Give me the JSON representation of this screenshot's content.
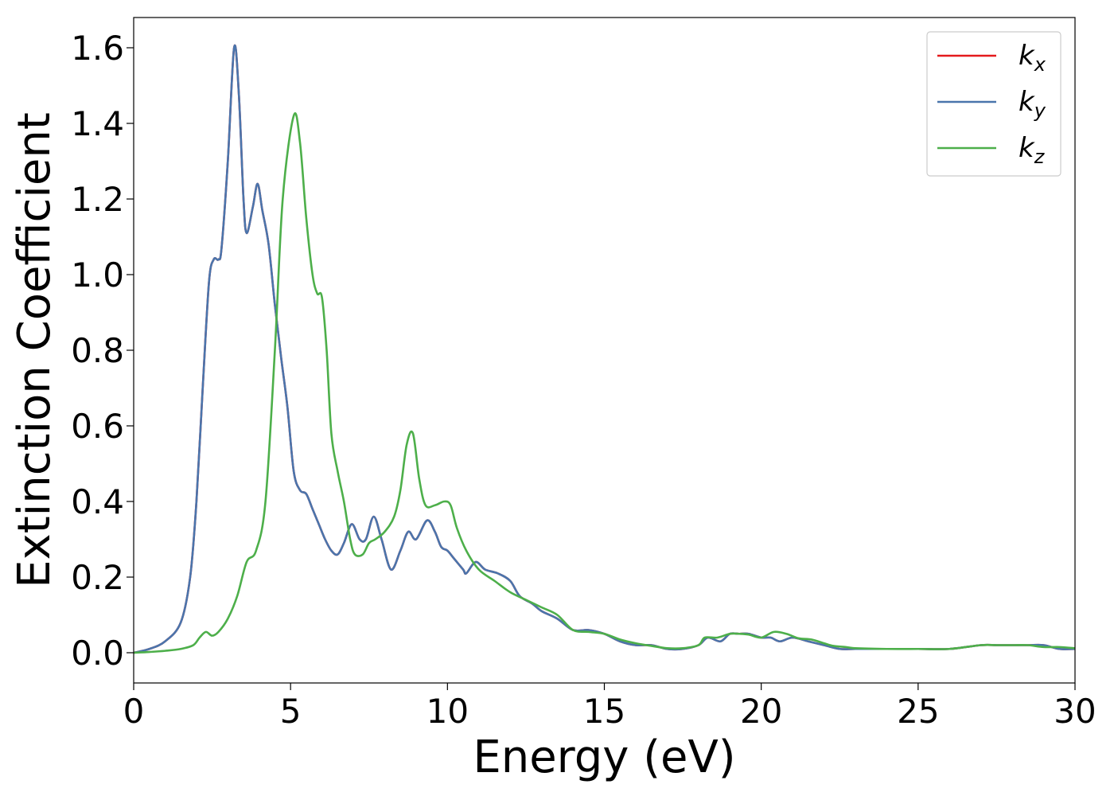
{
  "chart_data": {
    "type": "line",
    "title": "",
    "xlabel": "Energy (eV)",
    "ylabel": "Extinction Coefficient",
    "xlim": [
      0,
      30
    ],
    "ylim": [
      -0.08,
      1.68
    ],
    "xticks": [
      0,
      5,
      10,
      15,
      20,
      25,
      30
    ],
    "yticks": [
      0.0,
      0.2,
      0.4,
      0.6,
      0.8,
      1.0,
      1.2,
      1.4,
      1.6
    ],
    "xtick_labels": [
      "0",
      "5",
      "10",
      "15",
      "20",
      "25",
      "30"
    ],
    "ytick_labels": [
      "0.0",
      "0.2",
      "0.4",
      "0.6",
      "0.8",
      "1.0",
      "1.2",
      "1.4",
      "1.6"
    ],
    "grid": false,
    "legend_position": "top-right",
    "series": [
      {
        "name": "k_x",
        "legend_base": "k",
        "legend_sub": "x",
        "color": "#e41a1c",
        "x": [
          0,
          0.5,
          1.0,
          1.5,
          1.8,
          2.0,
          2.2,
          2.4,
          2.55,
          2.7,
          2.8,
          3.0,
          3.2,
          3.35,
          3.5,
          3.6,
          3.8,
          3.95,
          4.1,
          4.3,
          4.5,
          4.7,
          4.9,
          5.1,
          5.3,
          5.5,
          5.7,
          5.9,
          6.1,
          6.3,
          6.5,
          6.7,
          6.95,
          7.2,
          7.4,
          7.65,
          7.9,
          8.2,
          8.5,
          8.75,
          9.0,
          9.35,
          9.6,
          9.8,
          10.0,
          10.2,
          10.5,
          10.6,
          10.9,
          11.2,
          11.6,
          12.0,
          12.3,
          12.7,
          13.0,
          13.5,
          14.0,
          14.5,
          15.0,
          15.5,
          16.0,
          16.5,
          17.0,
          17.5,
          18.0,
          18.3,
          18.7,
          19.0,
          19.3,
          19.6,
          20.0,
          20.3,
          20.6,
          21.0,
          21.5,
          22.0,
          22.5,
          23.0,
          24.0,
          25.0,
          26.0,
          27.0,
          27.5,
          28.0,
          28.5,
          29.0,
          29.5,
          30.0
        ],
        "y": [
          0.0,
          0.01,
          0.03,
          0.08,
          0.2,
          0.4,
          0.7,
          0.98,
          1.04,
          1.04,
          1.07,
          1.3,
          1.6,
          1.48,
          1.2,
          1.11,
          1.18,
          1.24,
          1.17,
          1.08,
          0.92,
          0.78,
          0.65,
          0.48,
          0.43,
          0.42,
          0.38,
          0.34,
          0.3,
          0.27,
          0.26,
          0.29,
          0.34,
          0.3,
          0.3,
          0.36,
          0.3,
          0.22,
          0.27,
          0.32,
          0.3,
          0.35,
          0.32,
          0.28,
          0.27,
          0.25,
          0.22,
          0.21,
          0.24,
          0.22,
          0.21,
          0.19,
          0.15,
          0.13,
          0.11,
          0.09,
          0.06,
          0.06,
          0.05,
          0.03,
          0.02,
          0.02,
          0.01,
          0.01,
          0.02,
          0.04,
          0.03,
          0.05,
          0.05,
          0.05,
          0.04,
          0.04,
          0.03,
          0.04,
          0.03,
          0.02,
          0.01,
          0.01,
          0.01,
          0.01,
          0.01,
          0.02,
          0.02,
          0.02,
          0.02,
          0.02,
          0.01,
          0.01
        ]
      },
      {
        "name": "k_y",
        "legend_base": "k",
        "legend_sub": "y",
        "color": "#4a75ac",
        "x": [
          0,
          0.5,
          1.0,
          1.5,
          1.8,
          2.0,
          2.2,
          2.4,
          2.55,
          2.7,
          2.8,
          3.0,
          3.2,
          3.35,
          3.5,
          3.6,
          3.8,
          3.95,
          4.1,
          4.3,
          4.5,
          4.7,
          4.9,
          5.1,
          5.3,
          5.5,
          5.7,
          5.9,
          6.1,
          6.3,
          6.5,
          6.7,
          6.95,
          7.2,
          7.4,
          7.65,
          7.9,
          8.2,
          8.5,
          8.75,
          9.0,
          9.35,
          9.6,
          9.8,
          10.0,
          10.2,
          10.5,
          10.6,
          10.9,
          11.2,
          11.6,
          12.0,
          12.3,
          12.7,
          13.0,
          13.5,
          14.0,
          14.5,
          15.0,
          15.5,
          16.0,
          16.5,
          17.0,
          17.5,
          18.0,
          18.3,
          18.7,
          19.0,
          19.3,
          19.6,
          20.0,
          20.3,
          20.6,
          21.0,
          21.5,
          22.0,
          22.5,
          23.0,
          24.0,
          25.0,
          26.0,
          27.0,
          27.5,
          28.0,
          28.5,
          29.0,
          29.5,
          30.0
        ],
        "y": [
          0.0,
          0.01,
          0.03,
          0.08,
          0.2,
          0.4,
          0.7,
          0.98,
          1.04,
          1.04,
          1.07,
          1.3,
          1.6,
          1.48,
          1.2,
          1.11,
          1.18,
          1.24,
          1.17,
          1.08,
          0.92,
          0.78,
          0.65,
          0.48,
          0.43,
          0.42,
          0.38,
          0.34,
          0.3,
          0.27,
          0.26,
          0.29,
          0.34,
          0.3,
          0.3,
          0.36,
          0.3,
          0.22,
          0.27,
          0.32,
          0.3,
          0.35,
          0.32,
          0.28,
          0.27,
          0.25,
          0.22,
          0.21,
          0.24,
          0.22,
          0.21,
          0.19,
          0.15,
          0.13,
          0.11,
          0.09,
          0.06,
          0.06,
          0.05,
          0.03,
          0.02,
          0.02,
          0.01,
          0.01,
          0.02,
          0.04,
          0.03,
          0.05,
          0.05,
          0.05,
          0.04,
          0.04,
          0.03,
          0.04,
          0.03,
          0.02,
          0.01,
          0.01,
          0.01,
          0.01,
          0.01,
          0.02,
          0.02,
          0.02,
          0.02,
          0.02,
          0.01,
          0.01
        ]
      },
      {
        "name": "k_z",
        "legend_base": "k",
        "legend_sub": "z",
        "color": "#4daf4a",
        "x": [
          0,
          0.5,
          1.0,
          1.5,
          1.9,
          2.1,
          2.3,
          2.5,
          2.7,
          3.0,
          3.3,
          3.6,
          3.9,
          4.2,
          4.5,
          4.75,
          5.1,
          5.3,
          5.5,
          5.7,
          5.85,
          6.0,
          6.15,
          6.3,
          6.5,
          6.7,
          6.9,
          7.05,
          7.3,
          7.5,
          7.7,
          8.0,
          8.3,
          8.5,
          8.7,
          8.9,
          9.1,
          9.3,
          9.6,
          9.9,
          10.1,
          10.3,
          10.6,
          11.0,
          11.5,
          12.0,
          12.5,
          13.0,
          13.5,
          14.0,
          14.5,
          15.0,
          15.5,
          16.0,
          16.5,
          17.0,
          17.5,
          18.0,
          18.2,
          18.6,
          19.0,
          19.3,
          19.6,
          20.0,
          20.4,
          20.8,
          21.2,
          21.6,
          22.0,
          22.3,
          22.7,
          23.0,
          24.0,
          25.0,
          26.0,
          27.0,
          27.5,
          28.0,
          28.5,
          29.0,
          29.5,
          30.0
        ],
        "y": [
          0.0,
          0.002,
          0.005,
          0.01,
          0.02,
          0.04,
          0.055,
          0.045,
          0.055,
          0.09,
          0.15,
          0.24,
          0.27,
          0.4,
          0.8,
          1.2,
          1.42,
          1.35,
          1.15,
          1.0,
          0.95,
          0.94,
          0.8,
          0.58,
          0.48,
          0.4,
          0.3,
          0.26,
          0.26,
          0.29,
          0.3,
          0.32,
          0.36,
          0.43,
          0.55,
          0.58,
          0.46,
          0.39,
          0.39,
          0.4,
          0.39,
          0.33,
          0.27,
          0.22,
          0.19,
          0.16,
          0.14,
          0.12,
          0.1,
          0.06,
          0.055,
          0.05,
          0.035,
          0.025,
          0.018,
          0.012,
          0.012,
          0.02,
          0.04,
          0.04,
          0.05,
          0.05,
          0.048,
          0.04,
          0.055,
          0.05,
          0.038,
          0.035,
          0.025,
          0.018,
          0.015,
          0.012,
          0.01,
          0.01,
          0.01,
          0.02,
          0.02,
          0.02,
          0.02,
          0.015,
          0.015,
          0.012
        ]
      }
    ]
  }
}
